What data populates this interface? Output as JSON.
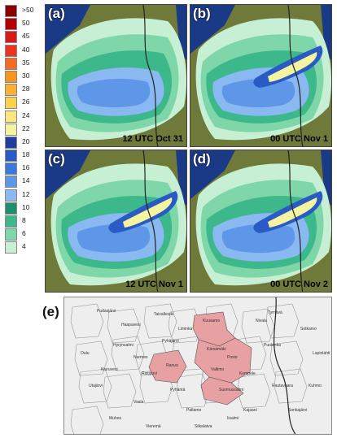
{
  "legend": {
    "entries": [
      {
        "label": ">50",
        "color": "#8b0000"
      },
      {
        "label": "50",
        "color": "#b30000"
      },
      {
        "label": "45",
        "color": "#d7191c"
      },
      {
        "label": "40",
        "color": "#ea3323"
      },
      {
        "label": "35",
        "color": "#f46d22"
      },
      {
        "label": "30",
        "color": "#f79521"
      },
      {
        "label": "28",
        "color": "#f9b233"
      },
      {
        "label": "26",
        "color": "#fbd24a"
      },
      {
        "label": "24",
        "color": "#fde77a"
      },
      {
        "label": "22",
        "color": "#f4f3a0"
      },
      {
        "label": "20",
        "color": "#1f3f9b"
      },
      {
        "label": "18",
        "color": "#2a5bc4"
      },
      {
        "label": "16",
        "color": "#3b78db"
      },
      {
        "label": "14",
        "color": "#5f97e8"
      },
      {
        "label": "12",
        "color": "#8ab8f0"
      },
      {
        "label": "10",
        "color": "#1c8f6e"
      },
      {
        "label": "8",
        "color": "#3cb88a"
      },
      {
        "label": "6",
        "color": "#7fd6a9"
      },
      {
        "label": "4",
        "color": "#c6efd3"
      }
    ]
  },
  "panels": [
    {
      "tag": "(a)",
      "time": "12 UTC Oct 31"
    },
    {
      "tag": "(b)",
      "time": "00 UTC Nov 1"
    },
    {
      "tag": "(c)",
      "time": "12 UTC Nov 1"
    },
    {
      "tag": "(d)",
      "time": "00 UTC Nov 2"
    }
  ],
  "map": {
    "tag": "(e)",
    "highlight_color": "#e8a1a3",
    "municipalities": [
      "Pudasjärvi",
      "Taivalkoski",
      "Kuusamo",
      "Posio",
      "Ranua",
      "Suomussalmi",
      "Puolanka",
      "Hyrynsalmi",
      "Utajärvi",
      "Vaala",
      "Paltamo",
      "Kajaani",
      "Sotkamo",
      "Kuhmo",
      "Ristijärvi",
      "Muhos",
      "Tyrnävä",
      "Liminka",
      "Oulu",
      "Kempele",
      "Siikalatva",
      "Vieremä",
      "Sonkajärvi",
      "Pyhäntä",
      "Kärsämäki",
      "Haapavesi",
      "Nivala",
      "Pyhäjärvi",
      "Kiuruvesi",
      "Iisalmi",
      "Lapinlahti",
      "Nurmes",
      "Valtimo",
      "Rautavaara"
    ]
  }
}
